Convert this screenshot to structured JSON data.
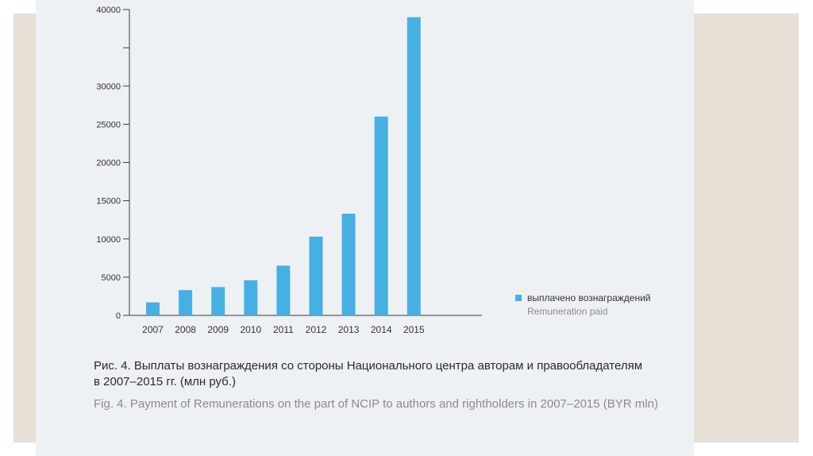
{
  "colors": {
    "bar": "#47b0e2",
    "panel_bg": "#edf1f3",
    "frame_bg": "#e6e0d6",
    "axis": "#3a3a3a"
  },
  "chart_data": {
    "type": "bar",
    "categories": [
      "2007",
      "2008",
      "2009",
      "2010",
      "2011",
      "2012",
      "2013",
      "2014",
      "2015"
    ],
    "series": [
      {
        "name": "выплачено вознаграждений",
        "name_en": "Remuneration paid",
        "values": [
          1700,
          3300,
          3700,
          4600,
          6500,
          10300,
          13300,
          26000,
          39000
        ]
      }
    ],
    "yticks": [
      0,
      5000,
      10000,
      15000,
      20000,
      25000,
      30000,
      35000,
      40000
    ],
    "yticklabels": [
      "0",
      "5000",
      "10000",
      "15000",
      "20000",
      "25000",
      "30000",
      "",
      "40000"
    ],
    "ylim": [
      0,
      40000
    ],
    "grid": false,
    "legend_position": "right",
    "caption_ru_line1": "Рис. 4. Выплаты вознаграждения со стороны Национального центра авторам и правообладателям",
    "caption_ru_line2": "в 2007–2015 гг. (млн руб.)",
    "caption_en": "Fig. 4. Payment of Remunerations on the part of NCIP to authors and rightholders in 2007–2015 (BYR mln)"
  }
}
